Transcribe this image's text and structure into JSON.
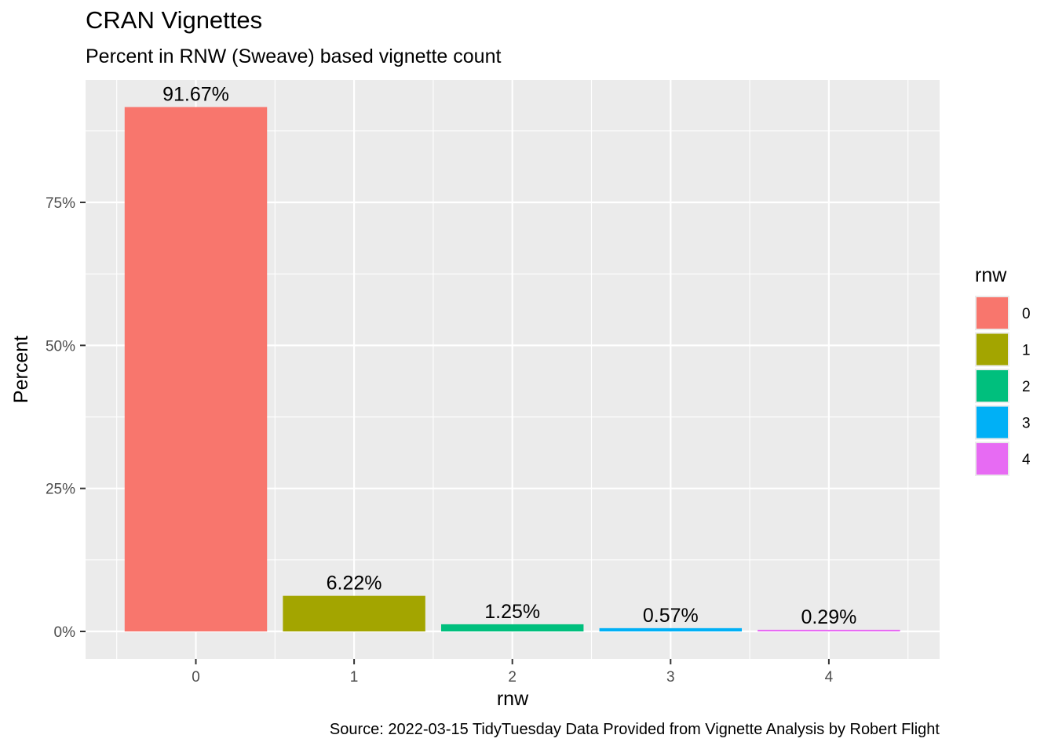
{
  "chart_data": {
    "type": "bar",
    "title": "CRAN Vignettes",
    "subtitle": "Percent in RNW (Sweave) based vignette count",
    "caption": "Source: 2022-03-15 TidyTuesday  Data Provided from Vignette Analysis by Robert Flight",
    "xlabel": "rnw",
    "ylabel": "Percent",
    "categories": [
      "0",
      "1",
      "2",
      "3",
      "4"
    ],
    "values": [
      91.67,
      6.22,
      1.25,
      0.57,
      0.29
    ],
    "data_labels": [
      "91.67%",
      "6.22%",
      "1.25%",
      "0.57%",
      "0.29%"
    ],
    "colors": [
      "#F8766D",
      "#A3A500",
      "#00BF7D",
      "#00B0F6",
      "#E76BF3"
    ],
    "ylim": [
      0,
      96
    ],
    "y_ticks": [
      0,
      25,
      50,
      75
    ],
    "y_tick_labels": [
      "0%",
      "25%",
      "50%",
      "75%"
    ],
    "grid": true,
    "panel_background": "#EBEBEB",
    "legend": {
      "title": "rnw",
      "position": "right",
      "entries": [
        "0",
        "1",
        "2",
        "3",
        "4"
      ]
    }
  }
}
